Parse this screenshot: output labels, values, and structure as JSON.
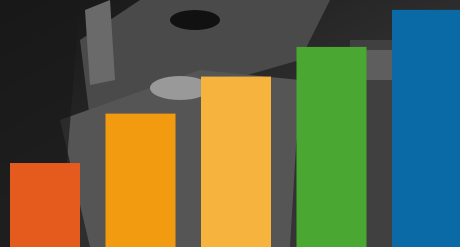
{
  "chart_data": {
    "type": "bar",
    "values": [
      34,
      54,
      69,
      81,
      96
    ],
    "colors": [
      "#e55b1d",
      "#f29a10",
      "#f6b43f",
      "#4aa832",
      "#0a6aa6"
    ],
    "ylim": [
      0,
      100
    ]
  }
}
